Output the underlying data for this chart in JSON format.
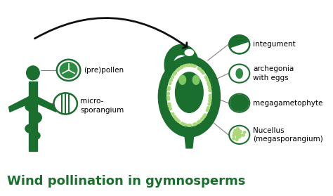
{
  "title": "Wind pollination in gymnosperms",
  "title_fontsize": 13,
  "title_bold": true,
  "bg_color": "#ffffff",
  "dark_green": "#1a6e2e",
  "mid_green": "#2e8b44",
  "light_green": "#7dc863",
  "dot_green": "#a8d878",
  "labels_left": [
    "(pre)pollen",
    "micro-\nsporangium"
  ],
  "labels_right": [
    "integument",
    "archegonia\nwith eggs",
    "megagametophyte",
    "Nucellus\n(megasporangium)"
  ],
  "arrow_color": "#111111"
}
